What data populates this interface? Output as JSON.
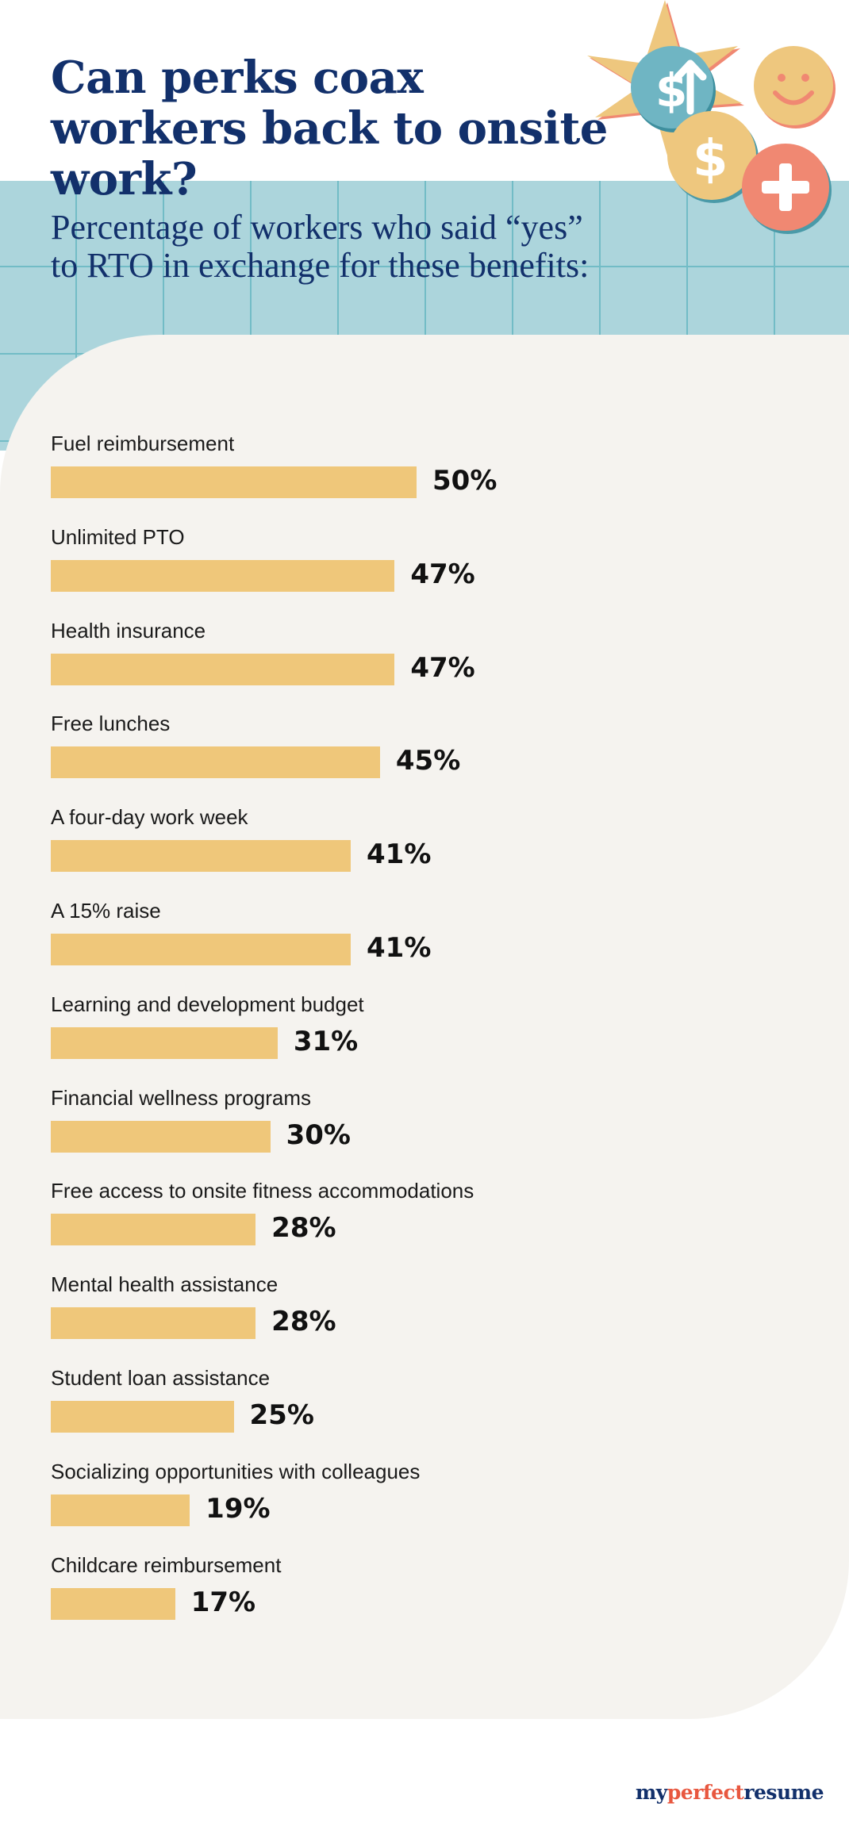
{
  "header": {
    "title": "Can perks coax workers back to onsite work?",
    "subtitle_line1": "Percentage of workers who said “yes”",
    "subtitle_line2": "to RTO in exchange for these benefits:"
  },
  "decor_icons": [
    "sun-burst-icon",
    "dollar-up-arrow-icon",
    "smiley-face-icon",
    "dollar-coin-icon",
    "plus-icon"
  ],
  "colors": {
    "title": "#12306b",
    "teal_band": "#acd5dc",
    "teal_grid": "#72bcc6",
    "panel": "#f5f3ef",
    "bar": "#efc77a",
    "coin_teal": "#6fb5c3",
    "coin_gold": "#eec77e",
    "coin_coral": "#f08872",
    "brand_accent": "#e8573f"
  },
  "chart_data": {
    "type": "bar",
    "orientation": "horizontal",
    "categories": [
      "Fuel reimbursement",
      "Unlimited PTO",
      "Health insurance",
      "Free lunches",
      "A four-day work week",
      "A 15% raise",
      "Learning and development budget",
      "Financial wellness programs",
      "Free access to onsite fitness accommodations",
      "Mental health assistance",
      "Student loan assistance",
      "Socializing opportunities with colleagues",
      "Childcare reimbursement"
    ],
    "values": [
      50,
      47,
      47,
      45,
      41,
      41,
      31,
      30,
      28,
      28,
      25,
      19,
      17
    ],
    "value_labels": [
      "50%",
      "47%",
      "47%",
      "45%",
      "41%",
      "41%",
      "31%",
      "30%",
      "28%",
      "28%",
      "25%",
      "19%",
      "17%"
    ],
    "xlim": [
      0,
      100
    ],
    "grid": false
  },
  "brand": {
    "part1": "my",
    "part2": "perfect",
    "part3": "resume"
  }
}
